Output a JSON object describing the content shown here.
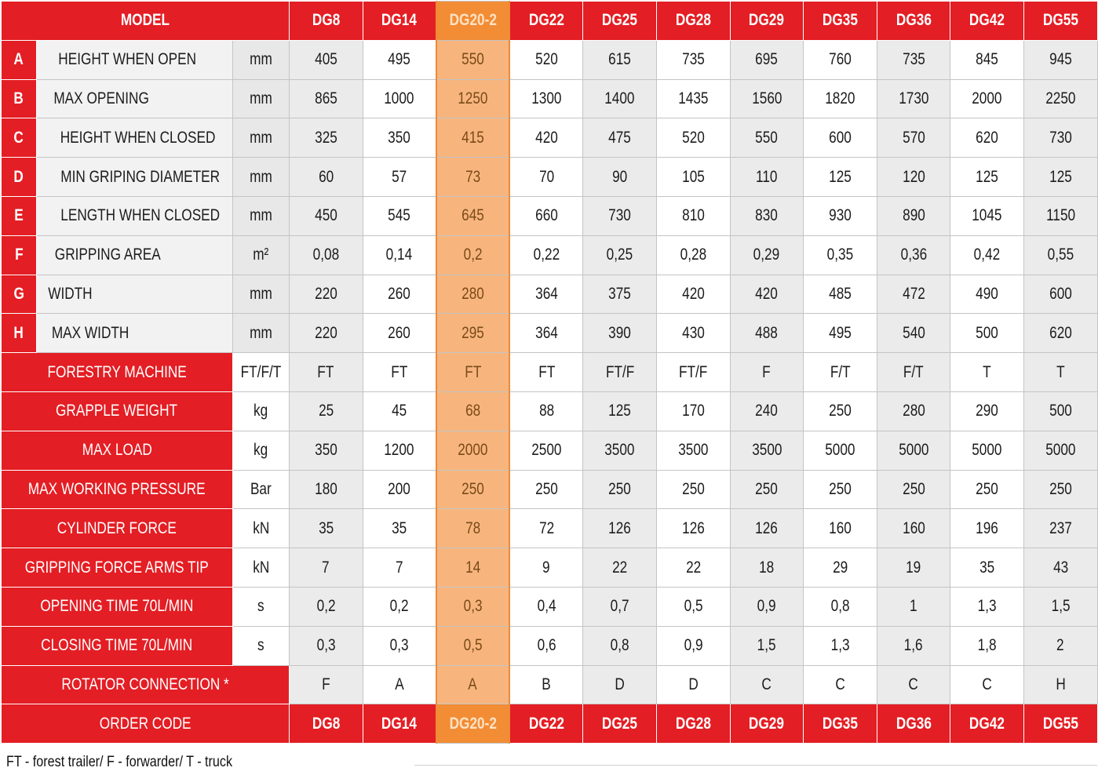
{
  "header": {
    "model_label": "MODEL",
    "models": [
      "DG8",
      "DG14",
      "DG20-2",
      "DG22",
      "DG25",
      "DG28",
      "DG29",
      "DG35",
      "DG36",
      "DG42",
      "DG55"
    ],
    "highlighted_model": "DG20-2"
  },
  "dimension_rows": [
    {
      "letter": "A",
      "label": "HEIGHT WHEN OPEN",
      "unit": "mm",
      "values": [
        "405",
        "495",
        "550",
        "520",
        "615",
        "735",
        "695",
        "760",
        "735",
        "845",
        "945"
      ]
    },
    {
      "letter": "B",
      "label": "MAX OPENING",
      "unit": "mm",
      "values": [
        "865",
        "1000",
        "1250",
        "1300",
        "1400",
        "1435",
        "1560",
        "1820",
        "1730",
        "2000",
        "2250"
      ]
    },
    {
      "letter": "C",
      "label": "HEIGHT WHEN CLOSED",
      "unit": "mm",
      "values": [
        "325",
        "350",
        "415",
        "420",
        "475",
        "520",
        "550",
        "600",
        "570",
        "620",
        "730"
      ]
    },
    {
      "letter": "D",
      "label": "MIN GRIPING DIAMETER",
      "unit": "mm",
      "values": [
        "60",
        "57",
        "73",
        "70",
        "90",
        "105",
        "110",
        "125",
        "120",
        "125",
        "125"
      ]
    },
    {
      "letter": "E",
      "label": "LENGTH WHEN CLOSED",
      "unit": "mm",
      "values": [
        "450",
        "545",
        "645",
        "660",
        "730",
        "810",
        "830",
        "930",
        "890",
        "1045",
        "1150"
      ]
    },
    {
      "letter": "F",
      "label": "GRIPPING AREA",
      "unit": "m²",
      "values": [
        "0,08",
        "0,14",
        "0,2",
        "0,22",
        "0,25",
        "0,28",
        "0,29",
        "0,35",
        "0,36",
        "0,42",
        "0,55"
      ]
    },
    {
      "letter": "G",
      "label": "WIDTH",
      "unit": "mm",
      "values": [
        "220",
        "260",
        "280",
        "364",
        "375",
        "420",
        "420",
        "485",
        "472",
        "490",
        "600"
      ]
    },
    {
      "letter": "H",
      "label": "MAX WIDTH",
      "unit": "mm",
      "values": [
        "220",
        "260",
        "295",
        "364",
        "390",
        "430",
        "488",
        "495",
        "540",
        "500",
        "620"
      ]
    }
  ],
  "spec_rows": [
    {
      "label": "FORESTRY MACHINE",
      "unit": "FT/F/T",
      "values": [
        "FT",
        "FT",
        "FT",
        "FT",
        "FT/F",
        "FT/F",
        "F",
        "F/T",
        "F/T",
        "T",
        "T"
      ]
    },
    {
      "label": "GRAPPLE WEIGHT",
      "unit": "kg",
      "values": [
        "25",
        "45",
        "68",
        "88",
        "125",
        "170",
        "240",
        "250",
        "280",
        "290",
        "500"
      ]
    },
    {
      "label": "MAX LOAD",
      "unit": "kg",
      "values": [
        "350",
        "1200",
        "2000",
        "2500",
        "3500",
        "3500",
        "3500",
        "5000",
        "5000",
        "5000",
        "5000"
      ]
    },
    {
      "label": "MAX WORKING PRESSURE",
      "unit": "Bar",
      "values": [
        "180",
        "200",
        "250",
        "250",
        "250",
        "250",
        "250",
        "250",
        "250",
        "250",
        "250"
      ]
    },
    {
      "label": "CYLINDER FORCE",
      "unit": "kN",
      "values": [
        "35",
        "35",
        "78",
        "72",
        "126",
        "126",
        "126",
        "160",
        "160",
        "196",
        "237"
      ]
    },
    {
      "label": "GRIPPING FORCE ARMS TIP",
      "unit": "kN",
      "values": [
        "7",
        "7",
        "14",
        "9",
        "22",
        "22",
        "18",
        "29",
        "19",
        "35",
        "43"
      ]
    },
    {
      "label": "OPENING TIME 70L/MIN",
      "unit": "s",
      "values": [
        "0,2",
        "0,2",
        "0,3",
        "0,4",
        "0,7",
        "0,5",
        "0,9",
        "0,8",
        "1",
        "1,3",
        "1,5"
      ]
    },
    {
      "label": "CLOSING TIME 70L/MIN",
      "unit": "s",
      "values": [
        "0,3",
        "0,3",
        "0,5",
        "0,6",
        "0,8",
        "0,9",
        "1,5",
        "1,3",
        "1,6",
        "1,8",
        "2"
      ]
    }
  ],
  "rotator_row": {
    "label": "ROTATOR CONNECTION *",
    "values": [
      "F",
      "A",
      "A",
      "B",
      "D",
      "D",
      "C",
      "C",
      "C",
      "C",
      "H"
    ]
  },
  "order_row": {
    "label": "ORDER CODE",
    "values": [
      "DG8",
      "DG14",
      "DG20-2",
      "DG22",
      "DG25",
      "DG28",
      "DG29",
      "DG35",
      "DG36",
      "DG42",
      "DG55"
    ]
  },
  "footnote": "FT - forest trailer/ F - forwarder/ T - truck",
  "colors": {
    "brand_red": "#e31e24",
    "highlight_orange": "#f7b57d",
    "highlight_header": "#f28c35"
  }
}
